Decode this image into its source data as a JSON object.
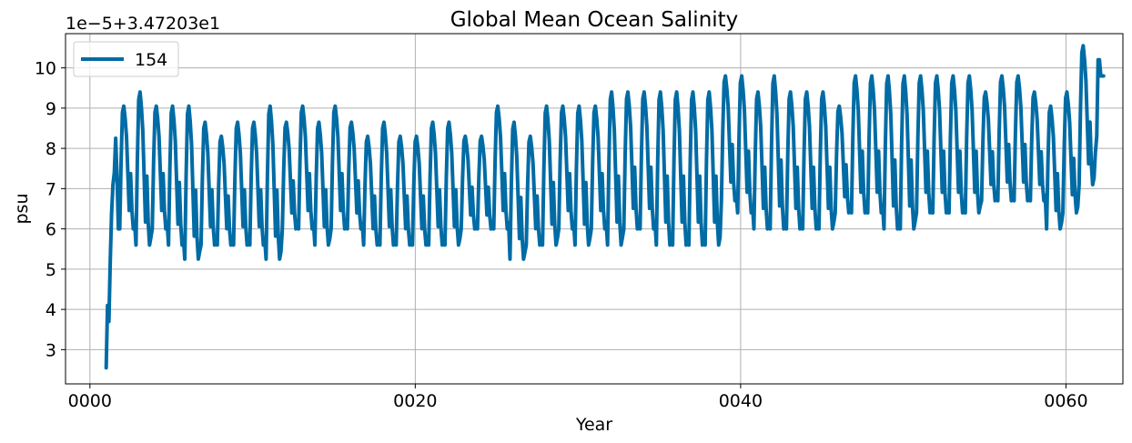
{
  "chart_data": {
    "type": "line",
    "title": "Global Mean Ocean Salinity",
    "xlabel": "Year",
    "ylabel": "psu",
    "offset_label": "1e−5+3.47203e1",
    "xlim": [
      -1.5,
      63.5
    ],
    "ylim": [
      2.15,
      10.85
    ],
    "xticks": [
      {
        "value": 0,
        "label": "0000"
      },
      {
        "value": 20,
        "label": "0020"
      },
      {
        "value": 40,
        "label": "0040"
      },
      {
        "value": 60,
        "label": "0060"
      }
    ],
    "yticks": [
      {
        "value": 3,
        "label": "3"
      },
      {
        "value": 4,
        "label": "4"
      },
      {
        "value": 5,
        "label": "5"
      },
      {
        "value": 6,
        "label": "6"
      },
      {
        "value": 7,
        "label": "7"
      },
      {
        "value": 8,
        "label": "8"
      },
      {
        "value": 9,
        "label": "9"
      },
      {
        "value": 10,
        "label": "10"
      }
    ],
    "grid": true,
    "legend_position": "top-left",
    "series": [
      {
        "name": "154",
        "color": "#006ba4",
        "x_start": 1.0,
        "x_step": 0.0833,
        "lead_in": [
          2.55,
          4.1,
          3.7,
          5.2,
          6.4,
          7.1,
          7.4,
          8.25,
          7.3,
          6.0
        ],
        "year_lows": [
          6.0,
          5.6,
          6.0,
          5.6,
          5.25,
          5.6,
          5.6,
          5.6,
          5.6,
          5.25,
          6.0,
          6.0,
          5.6,
          6.0,
          6.0,
          5.6,
          5.6,
          5.6,
          5.6,
          5.6,
          5.6,
          6.0,
          6.0,
          6.0,
          5.25,
          5.6,
          5.6,
          6.0,
          5.6,
          6.0,
          5.6,
          6.0,
          6.0,
          5.6,
          5.6,
          5.6,
          5.6,
          6.7,
          6.4,
          6.0,
          6.0,
          6.0,
          6.0,
          6.0,
          6.4,
          6.4,
          6.4,
          6.0,
          6.0,
          6.4,
          6.4,
          6.4,
          6.4,
          6.7,
          6.7,
          6.7,
          6.7,
          6.0,
          6.4,
          7.1
        ],
        "year_highs": [
          9.05,
          9.4,
          9.05,
          9.05,
          9.05,
          8.65,
          8.3,
          8.65,
          8.65,
          9.05,
          8.65,
          9.05,
          8.65,
          9.05,
          8.65,
          8.3,
          8.65,
          8.3,
          8.3,
          8.65,
          8.65,
          8.3,
          8.3,
          9.05,
          8.65,
          8.3,
          9.05,
          9.05,
          9.05,
          9.05,
          9.4,
          9.4,
          9.4,
          9.4,
          9.4,
          9.4,
          9.4,
          9.8,
          9.8,
          9.4,
          9.8,
          9.4,
          9.4,
          9.4,
          9.05,
          9.8,
          9.8,
          9.8,
          9.8,
          9.8,
          9.8,
          9.8,
          9.8,
          9.4,
          9.8,
          9.8,
          9.4,
          9.05,
          9.4,
          10.55
        ],
        "tail": [
          7.9,
          8.3,
          10.2,
          10.2,
          9.8,
          9.8,
          9.8
        ]
      }
    ]
  }
}
